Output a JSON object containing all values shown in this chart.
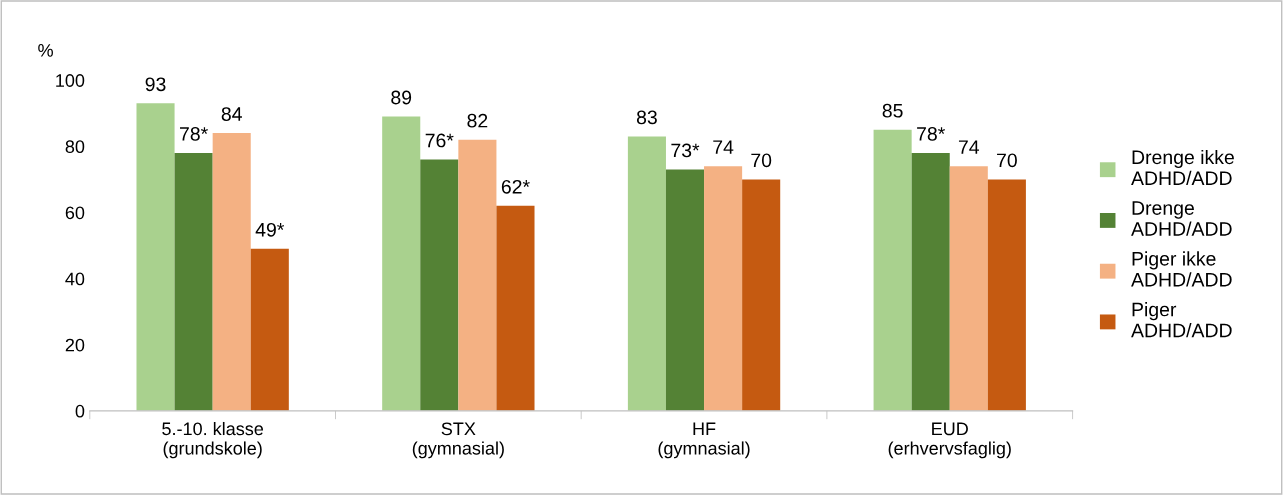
{
  "chart_data": {
    "type": "bar",
    "ylabel": "%",
    "categories": [
      "5.-10. klasse\n(grundskole)",
      "STX\n(gymnasial)",
      "HF\n(gymnasial)",
      "EUD\n(erhvervsfaglig)"
    ],
    "series": [
      {
        "name": "Drenge ikke\nADHD/ADD",
        "color": "#a9d18e",
        "values": [
          93,
          89,
          83,
          85
        ],
        "value_labels": [
          "93",
          "89",
          "83",
          "85"
        ]
      },
      {
        "name": "Drenge\nADHD/ADD",
        "color": "#548235",
        "values": [
          78,
          76,
          73,
          78
        ],
        "value_labels": [
          "78*",
          "76*",
          "73*",
          "78*"
        ]
      },
      {
        "name": "Piger ikke\nADHD/ADD",
        "color": "#f4b183",
        "values": [
          84,
          82,
          74,
          74
        ],
        "value_labels": [
          "84",
          "82",
          "74",
          "74"
        ]
      },
      {
        "name": "Piger\nADHD/ADD",
        "color": "#c55a11",
        "values": [
          49,
          62,
          70,
          70
        ],
        "value_labels": [
          "49*",
          "62*",
          "70",
          "70"
        ]
      }
    ],
    "ylim": [
      0,
      100
    ],
    "yticks": [
      0,
      20,
      40,
      60,
      80,
      100
    ],
    "grid": false,
    "legend": "right"
  }
}
